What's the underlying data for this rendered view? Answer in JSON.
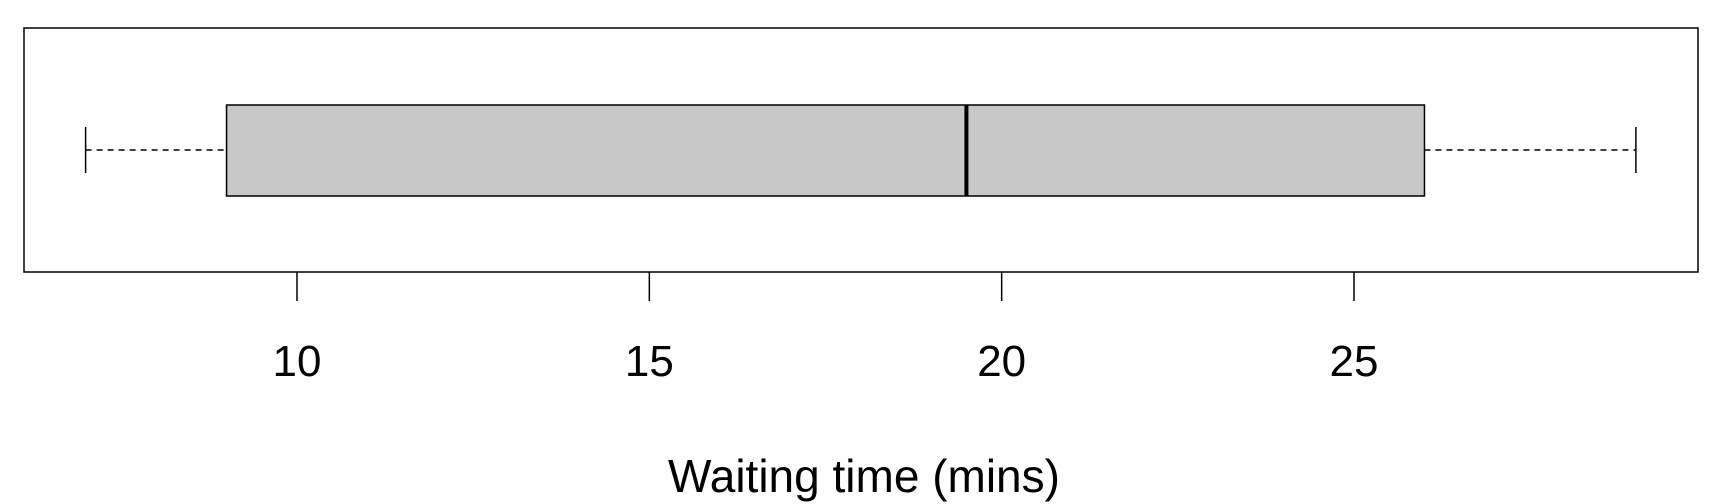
{
  "chart_data": {
    "type": "boxplot",
    "orientation": "horizontal",
    "title": "",
    "xlabel": "Waiting time (mins)",
    "ylabel": "",
    "xlim": [
      6.2,
      30.0
    ],
    "x_ticks": [
      10,
      15,
      20,
      25
    ],
    "x_tick_labels": [
      "10",
      "15",
      "20",
      "25"
    ],
    "grid": false,
    "box": {
      "whisker_low": 7.0,
      "q1": 9.0,
      "median": 19.5,
      "q3": 26.0,
      "whisker_high": 29.0
    },
    "colors": {
      "box_fill": "#c8c8c8",
      "stroke": "#000000",
      "background": "#ffffff"
    }
  }
}
